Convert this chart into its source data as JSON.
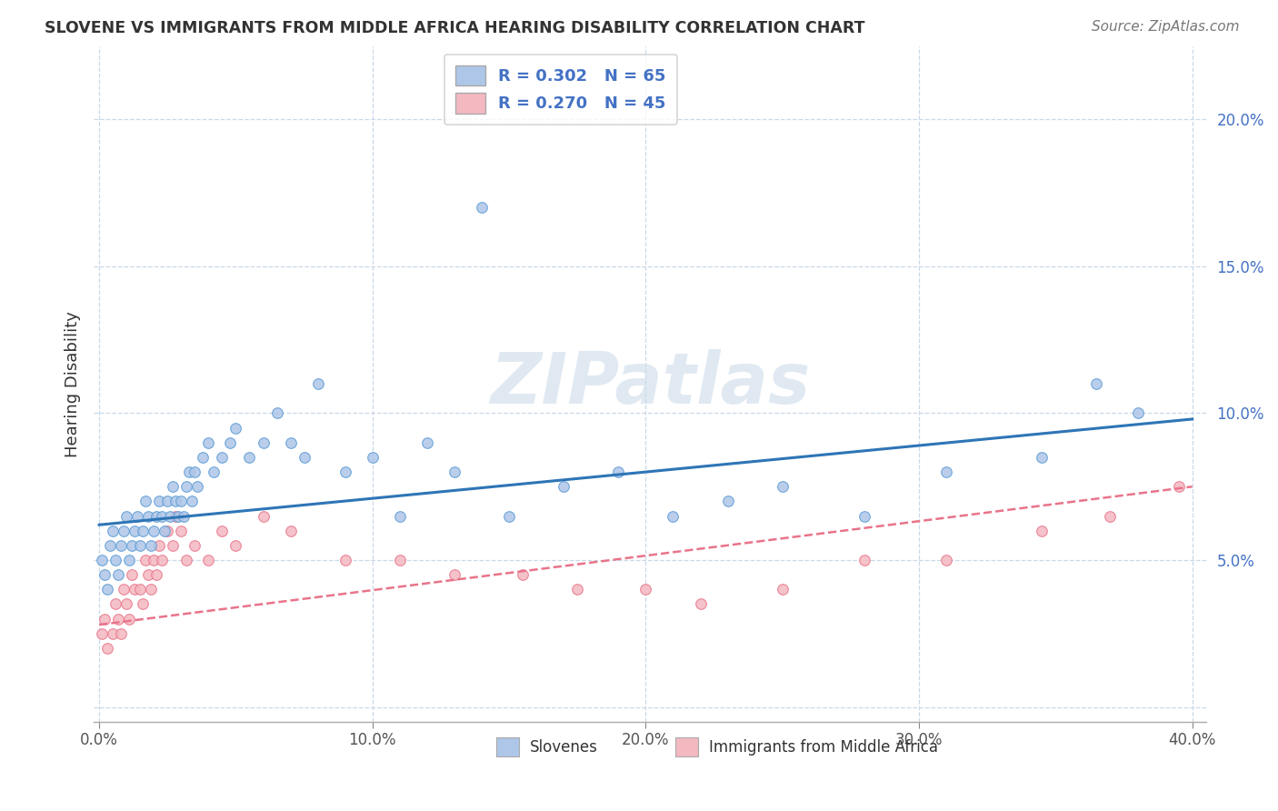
{
  "title": "SLOVENE VS IMMIGRANTS FROM MIDDLE AFRICA HEARING DISABILITY CORRELATION CHART",
  "source": "Source: ZipAtlas.com",
  "xlabel_bottom": [
    "Slovenes",
    "Immigrants from Middle Africa"
  ],
  "ylabel": "Hearing Disability",
  "xlim": [
    -0.002,
    0.405
  ],
  "ylim": [
    -0.005,
    0.225
  ],
  "xticks": [
    0.0,
    0.1,
    0.2,
    0.3,
    0.4
  ],
  "yticks": [
    0.0,
    0.05,
    0.1,
    0.15,
    0.2
  ],
  "xticklabels": [
    "0.0%",
    "10.0%",
    "20.0%",
    "30.0%",
    "40.0%"
  ],
  "yticklabels": [
    "",
    "5.0%",
    "10.0%",
    "15.0%",
    "20.0%"
  ],
  "series1_color": "#aec6e8",
  "series1_edge": "#5b9bd5",
  "series2_color": "#f4b8c1",
  "series2_edge": "#e8748a",
  "line1_color": "#2e75b6",
  "line2_color": "#e8748a",
  "R1": 0.302,
  "N1": 65,
  "R2": 0.27,
  "N2": 45,
  "background_color": "#ffffff",
  "grid_color": "#c8d8e8",
  "watermark": "ZIPatlas",
  "legend_box_color1": "#aec6e8",
  "legend_box_color2": "#f4b8c1",
  "slovene_x": [
    0.001,
    0.002,
    0.003,
    0.004,
    0.005,
    0.006,
    0.007,
    0.008,
    0.009,
    0.01,
    0.011,
    0.012,
    0.013,
    0.014,
    0.015,
    0.016,
    0.017,
    0.018,
    0.019,
    0.02,
    0.021,
    0.022,
    0.023,
    0.024,
    0.025,
    0.026,
    0.027,
    0.028,
    0.029,
    0.03,
    0.031,
    0.032,
    0.033,
    0.034,
    0.035,
    0.036,
    0.038,
    0.04,
    0.042,
    0.045,
    0.048,
    0.05,
    0.055,
    0.06,
    0.065,
    0.07,
    0.075,
    0.08,
    0.09,
    0.1,
    0.11,
    0.12,
    0.13,
    0.14,
    0.15,
    0.17,
    0.19,
    0.21,
    0.23,
    0.25,
    0.28,
    0.31,
    0.345,
    0.365,
    0.38
  ],
  "slovene_y": [
    0.05,
    0.045,
    0.04,
    0.055,
    0.06,
    0.05,
    0.045,
    0.055,
    0.06,
    0.065,
    0.05,
    0.055,
    0.06,
    0.065,
    0.055,
    0.06,
    0.07,
    0.065,
    0.055,
    0.06,
    0.065,
    0.07,
    0.065,
    0.06,
    0.07,
    0.065,
    0.075,
    0.07,
    0.065,
    0.07,
    0.065,
    0.075,
    0.08,
    0.07,
    0.08,
    0.075,
    0.085,
    0.09,
    0.08,
    0.085,
    0.09,
    0.095,
    0.085,
    0.09,
    0.1,
    0.09,
    0.085,
    0.11,
    0.08,
    0.085,
    0.065,
    0.09,
    0.08,
    0.17,
    0.065,
    0.075,
    0.08,
    0.065,
    0.07,
    0.075,
    0.065,
    0.08,
    0.085,
    0.11,
    0.1
  ],
  "immigrant_x": [
    0.001,
    0.002,
    0.003,
    0.005,
    0.006,
    0.007,
    0.008,
    0.009,
    0.01,
    0.011,
    0.012,
    0.013,
    0.015,
    0.016,
    0.017,
    0.018,
    0.019,
    0.02,
    0.021,
    0.022,
    0.023,
    0.025,
    0.027,
    0.028,
    0.03,
    0.032,
    0.035,
    0.04,
    0.045,
    0.05,
    0.06,
    0.07,
    0.09,
    0.11,
    0.13,
    0.155,
    0.175,
    0.2,
    0.22,
    0.25,
    0.28,
    0.31,
    0.345,
    0.37,
    0.395
  ],
  "immigrant_y": [
    0.025,
    0.03,
    0.02,
    0.025,
    0.035,
    0.03,
    0.025,
    0.04,
    0.035,
    0.03,
    0.045,
    0.04,
    0.04,
    0.035,
    0.05,
    0.045,
    0.04,
    0.05,
    0.045,
    0.055,
    0.05,
    0.06,
    0.055,
    0.065,
    0.06,
    0.05,
    0.055,
    0.05,
    0.06,
    0.055,
    0.065,
    0.06,
    0.05,
    0.05,
    0.045,
    0.045,
    0.04,
    0.04,
    0.035,
    0.04,
    0.05,
    0.05,
    0.06,
    0.065,
    0.075
  ],
  "line1_x": [
    0.0,
    0.4
  ],
  "line1_y": [
    0.062,
    0.098
  ],
  "line2_x": [
    0.0,
    0.4
  ],
  "line2_y": [
    0.028,
    0.075
  ]
}
